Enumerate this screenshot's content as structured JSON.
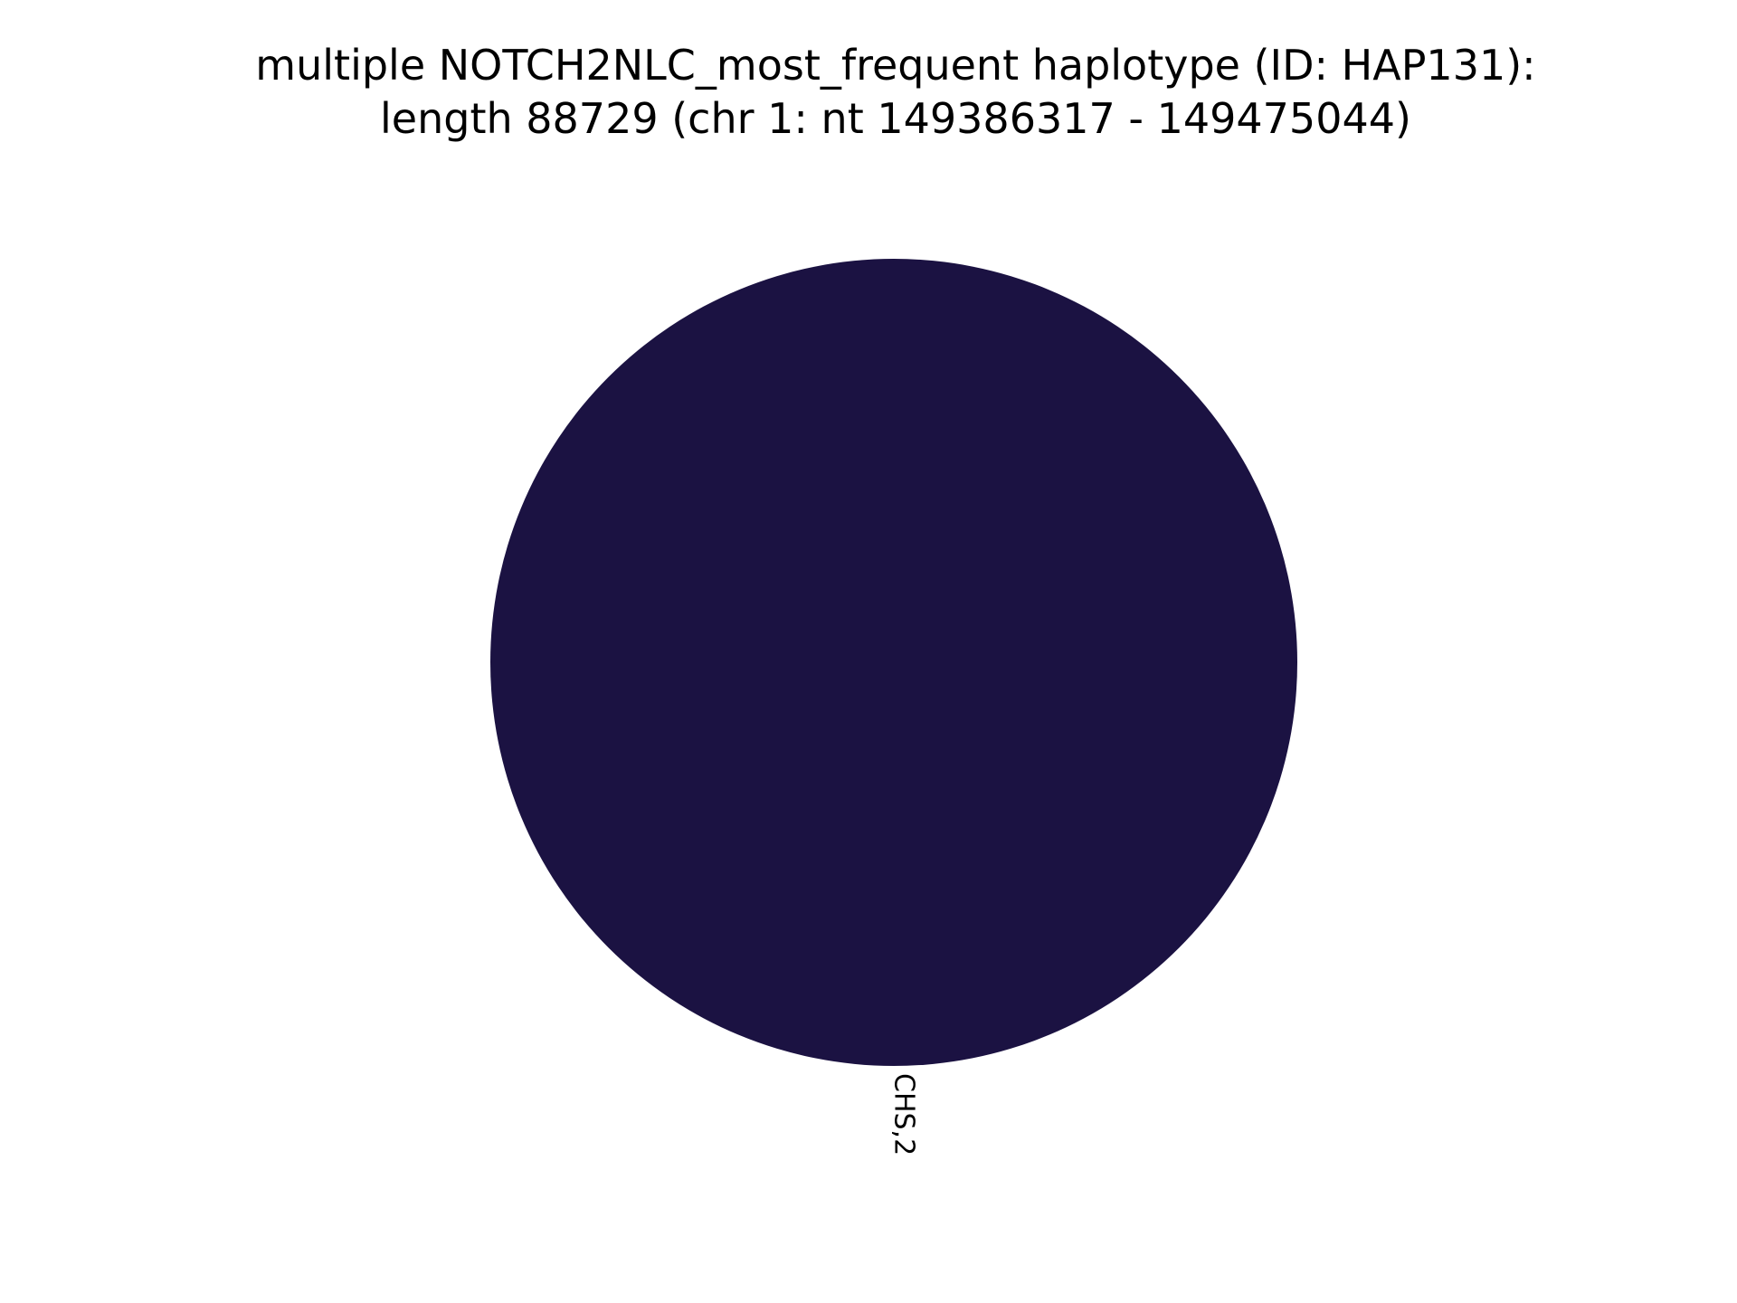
{
  "chart_data": {
    "type": "pie",
    "title_lines": [
      "multiple NOTCH2NLC_most_frequent haplotype (ID: HAP131):",
      "length 88729 (chr 1: nt 149386317 - 149475044)"
    ],
    "slices": [
      {
        "label": "CHS,2",
        "value": 2,
        "color": "#1b1242"
      }
    ],
    "legend": "none"
  }
}
